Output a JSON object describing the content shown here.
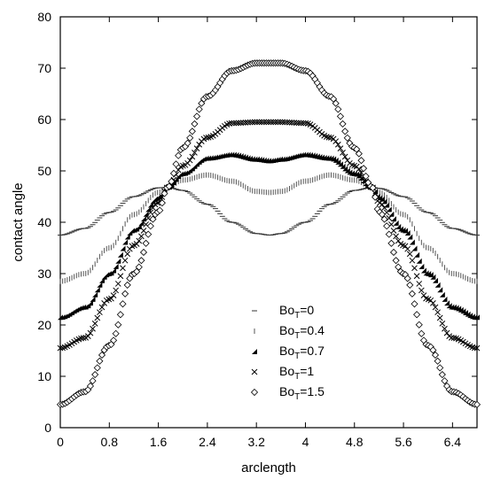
{
  "chart_data": {
    "type": "scatter",
    "title": "",
    "xlabel": "arclength",
    "ylabel": "contact angle",
    "xlim": [
      0,
      6.8
    ],
    "ylim": [
      0,
      80
    ],
    "xticks": [
      "0",
      "0.8",
      "1.6",
      "2.4",
      "3.2",
      "4",
      "4.8",
      "5.6",
      "6.4"
    ],
    "yticks": [
      "0",
      "10",
      "20",
      "30",
      "40",
      "50",
      "60",
      "70",
      "80"
    ],
    "grid": false,
    "legend": "center-bottom",
    "series": [
      {
        "name": "Bo_T=0",
        "label_main": "Bo",
        "label_sub": "T",
        "label_rest": "=0",
        "marker": "dash",
        "x": [
          0,
          0.4,
          0.8,
          1.2,
          1.6,
          1.75,
          2.0,
          2.4,
          2.8,
          3.2,
          3.42,
          3.6,
          4.0,
          4.4,
          4.8,
          5.09,
          5.2,
          5.6,
          6.0,
          6.4,
          6.8
        ],
        "y": [
          37.5,
          38.8,
          41.9,
          45.0,
          46.7,
          46.8,
          46.2,
          43.5,
          40.0,
          37.8,
          37.5,
          37.8,
          40.0,
          43.5,
          46.2,
          46.8,
          46.6,
          45.0,
          41.9,
          38.8,
          37.5
        ]
      },
      {
        "name": "Bo_T=0.4",
        "label_main": "Bo",
        "label_sub": "T",
        "label_rest": "=0.4",
        "marker": "vline",
        "x": [
          0,
          0.4,
          0.8,
          1.2,
          1.6,
          1.75,
          2.0,
          2.4,
          2.8,
          3.2,
          3.42,
          3.6,
          4.0,
          4.4,
          4.8,
          5.09,
          5.2,
          5.6,
          6.0,
          6.4,
          6.8
        ],
        "y": [
          28.5,
          30.0,
          35.0,
          41.5,
          45.8,
          46.8,
          48.2,
          49.2,
          48.0,
          46.0,
          45.8,
          46.0,
          48.0,
          49.2,
          48.2,
          46.8,
          45.8,
          41.5,
          35.0,
          30.0,
          28.5
        ]
      },
      {
        "name": "Bo_T=0.7",
        "label_main": "Bo",
        "label_sub": "T",
        "label_rest": "=0.7",
        "marker": "triangle",
        "x": [
          0,
          0.4,
          0.8,
          1.2,
          1.6,
          1.75,
          2.0,
          2.4,
          2.8,
          3.2,
          3.42,
          3.6,
          4.0,
          4.4,
          4.8,
          5.09,
          5.2,
          5.6,
          6.0,
          6.4,
          6.8
        ],
        "y": [
          21.5,
          23.5,
          30.0,
          38.5,
          44.8,
          46.8,
          49.5,
          52.5,
          53.2,
          52.3,
          52.0,
          52.3,
          53.2,
          52.5,
          49.5,
          46.8,
          44.8,
          38.5,
          30.0,
          23.5,
          21.5
        ]
      },
      {
        "name": "Bo_T=1",
        "label_main": "Bo",
        "label_sub": "T",
        "label_rest": "=1",
        "marker": "cross",
        "x": [
          0,
          0.4,
          0.8,
          1.2,
          1.6,
          1.75,
          2.0,
          2.4,
          2.8,
          3.2,
          3.42,
          3.6,
          4.0,
          4.4,
          4.8,
          5.09,
          5.2,
          5.6,
          6.0,
          6.4,
          6.8
        ],
        "y": [
          15.5,
          17.5,
          25.0,
          35.5,
          43.8,
          46.8,
          51.0,
          56.5,
          59.3,
          59.5,
          59.5,
          59.5,
          59.3,
          56.5,
          51.0,
          46.8,
          43.8,
          35.5,
          25.0,
          17.5,
          15.5
        ]
      },
      {
        "name": "Bo_T=1.5",
        "label_main": "Bo",
        "label_sub": "T",
        "label_rest": "=1.5",
        "marker": "diamond",
        "x": [
          0,
          0.4,
          0.8,
          1.2,
          1.6,
          1.75,
          2.0,
          2.4,
          2.8,
          3.2,
          3.42,
          3.6,
          4.0,
          4.4,
          4.8,
          5.09,
          5.2,
          5.6,
          6.0,
          6.4,
          6.8
        ],
        "y": [
          4.5,
          7.0,
          16.0,
          30.0,
          42.0,
          46.8,
          54.5,
          64.5,
          69.5,
          71.0,
          71.0,
          71.0,
          69.5,
          64.5,
          54.5,
          46.8,
          42.0,
          30.0,
          16.0,
          7.0,
          4.5
        ]
      }
    ]
  }
}
